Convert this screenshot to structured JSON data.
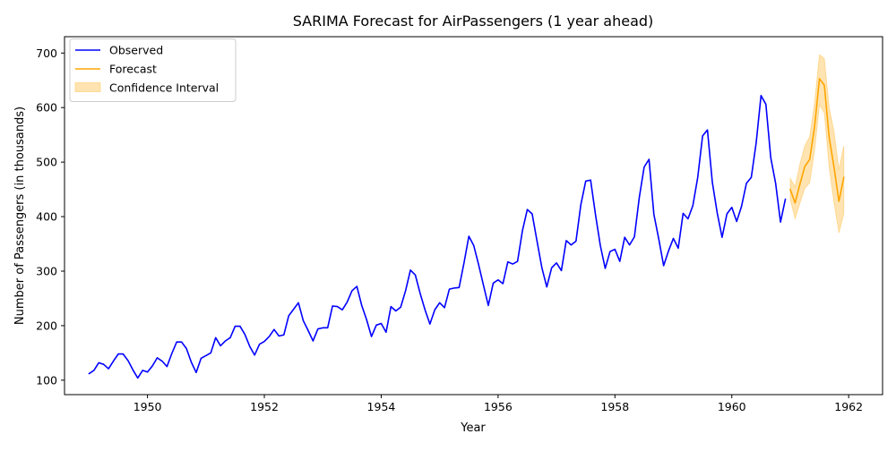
{
  "chart_data": {
    "type": "line",
    "title": "SARIMA Forecast for AirPassengers (1 year ahead)",
    "xlabel": "Year",
    "ylabel": "Number of Passengers (in thousands)",
    "xlim": [
      1948.58,
      1962.58
    ],
    "ylim": [
      73.5,
      730
    ],
    "x_ticks": [
      1950,
      1952,
      1954,
      1956,
      1958,
      1960,
      1962
    ],
    "y_ticks": [
      100,
      200,
      300,
      400,
      500,
      600,
      700
    ],
    "grid": false,
    "legend_position": "top-left",
    "series": [
      {
        "name": "Observed",
        "color": "#0000ff",
        "x_start": 1949.0,
        "x_step": 0.08333333,
        "values": [
          112,
          118,
          132,
          129,
          121,
          135,
          148,
          148,
          136,
          119,
          104,
          118,
          115,
          126,
          141,
          135,
          125,
          149,
          170,
          170,
          158,
          133,
          114,
          140,
          145,
          150,
          178,
          163,
          172,
          178,
          199,
          199,
          184,
          162,
          146,
          166,
          171,
          180,
          193,
          181,
          183,
          218,
          230,
          242,
          209,
          191,
          172,
          194,
          196,
          196,
          236,
          235,
          229,
          243,
          264,
          272,
          237,
          211,
          180,
          201,
          204,
          188,
          235,
          227,
          234,
          264,
          302,
          293,
          259,
          229,
          203,
          229,
          242,
          233,
          267,
          269,
          270,
          315,
          364,
          347,
          312,
          274,
          237,
          278,
          284,
          277,
          317,
          313,
          318,
          374,
          413,
          405,
          355,
          306,
          271,
          306,
          315,
          301,
          356,
          348,
          355,
          422,
          465,
          467,
          404,
          347,
          305,
          336,
          340,
          318,
          362,
          348,
          363,
          435,
          491,
          505,
          404,
          359,
          310,
          337,
          360,
          342,
          406,
          396,
          420,
          472,
          548,
          559,
          463,
          407,
          362,
          405,
          417,
          391,
          419,
          461,
          472,
          535,
          622,
          606,
          508,
          461,
          390,
          432
        ]
      },
      {
        "name": "Forecast",
        "color": "#ffa500",
        "x_start": 1961.0,
        "x_step": 0.08333333,
        "values": [
          450,
          425,
          460,
          492,
          505,
          565,
          653,
          641,
          545,
          490,
          428,
          472
        ]
      }
    ],
    "confidence_interval": {
      "name": "Confidence Interval",
      "color": "#ffa500",
      "opacity": 0.3,
      "x_start": 1961.0,
      "x_step": 0.08333333,
      "lower": [
        432,
        396,
        425,
        452,
        462,
        522,
        605,
        590,
        490,
        425,
        370,
        405
      ],
      "upper": [
        470,
        455,
        497,
        530,
        547,
        608,
        697,
        690,
        600,
        555,
        486,
        530
      ]
    }
  }
}
